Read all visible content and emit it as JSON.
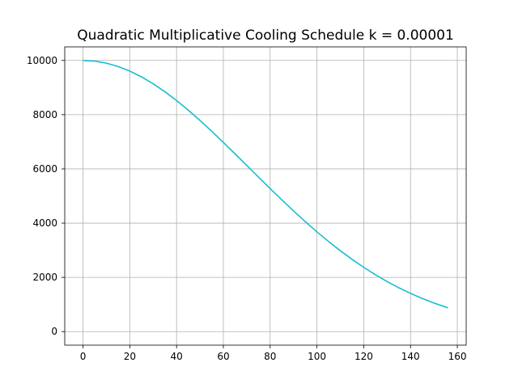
{
  "chart_data": {
    "type": "line",
    "title": "Quadratic Multiplicative Cooling Schedule  k = 0.00001",
    "xlabel": "",
    "ylabel": "",
    "xlim": [
      -7.8,
      163.8
    ],
    "ylim": [
      -500,
      10500
    ],
    "x_ticks": [
      0,
      20,
      40,
      60,
      80,
      100,
      120,
      140,
      160
    ],
    "x_tick_labels": [
      "0",
      "20",
      "40",
      "60",
      "80",
      "100",
      "120",
      "140",
      "160"
    ],
    "y_ticks": [
      0,
      2000,
      4000,
      6000,
      8000,
      10000
    ],
    "y_tick_labels": [
      "0",
      "2000",
      "4000",
      "6000",
      "8000",
      "10000"
    ],
    "grid": true,
    "legend": "none",
    "series": [
      {
        "color": "#17becf",
        "x": [
          0,
          5,
          10,
          15,
          20,
          25,
          30,
          35,
          40,
          45,
          50,
          55,
          60,
          65,
          70,
          75,
          80,
          85,
          90,
          95,
          100,
          105,
          110,
          115,
          120,
          125,
          130,
          135,
          140,
          145,
          150,
          156
        ],
        "y": [
          10000,
          9975,
          9900,
          9778,
          9608,
          9394,
          9139,
          8847,
          8521,
          8167,
          7788,
          7390,
          6977,
          6554,
          6126,
          5698,
          5273,
          4857,
          4449,
          4056,
          3679,
          3321,
          2982,
          2665,
          2369,
          2096,
          1845,
          1616,
          1409,
          1222,
          1054,
          877
        ]
      }
    ]
  }
}
